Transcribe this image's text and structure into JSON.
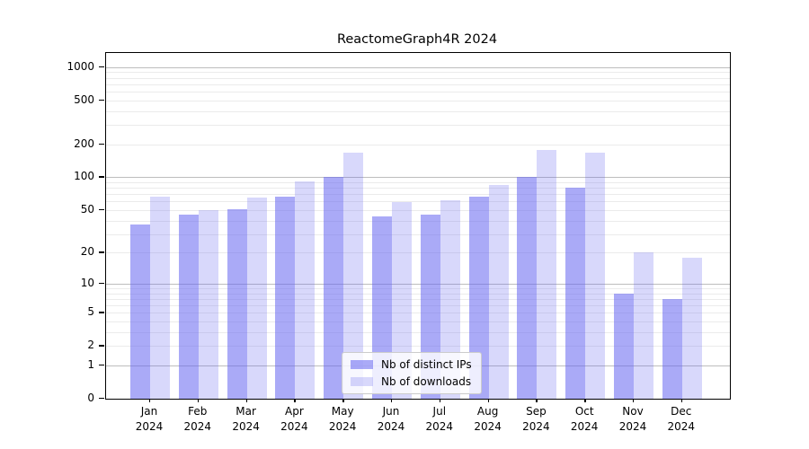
{
  "title": "ReactomeGraph4R 2024",
  "chart_data": {
    "type": "bar",
    "title": "ReactomeGraph4R 2024",
    "categories": [
      "Jan",
      "Feb",
      "Mar",
      "Apr",
      "May",
      "Jun",
      "Jul",
      "Aug",
      "Sep",
      "Oct",
      "Nov",
      "Dec"
    ],
    "category_year": "2024",
    "series": [
      {
        "name": "Nb of distinct IPs",
        "color": "rgba(100,100,240,0.55)",
        "values": [
          37,
          45,
          51,
          67,
          100,
          44,
          45,
          66,
          100,
          80,
          8,
          7
        ]
      },
      {
        "name": "Nb of downloads",
        "color": "rgba(100,100,240,0.25)",
        "values": [
          67,
          50,
          65,
          92,
          168,
          59,
          61,
          85,
          178,
          168,
          20,
          18
        ]
      }
    ],
    "y_scale": "log1p",
    "y_ticks": [
      1000,
      500,
      200,
      100,
      50,
      20,
      10,
      5,
      2,
      1,
      0
    ],
    "ylim": [
      0,
      1348
    ],
    "grid": "both",
    "grid_major_values": [
      1,
      10,
      100,
      1000
    ],
    "legend_position": "lower-center",
    "xlabel": "",
    "ylabel": ""
  },
  "colors": {
    "bar_ips": "#a8a8f6",
    "bar_downloads": "#d9d9f8",
    "grid_major": "#bdbdbd",
    "grid_minor": "#ebebeb",
    "background": "#ffffff"
  }
}
